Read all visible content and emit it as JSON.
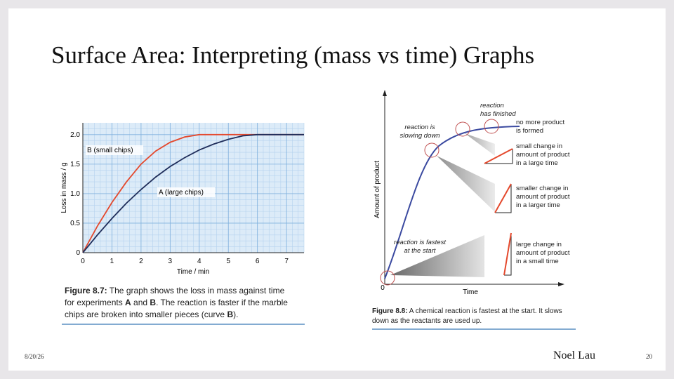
{
  "slide": {
    "title": "Surface Area: Interpreting (mass vs time) Graphs",
    "date": "8/20/26",
    "author": "Noel Lau",
    "page_number": "20",
    "figure_left": {
      "chart_data": {
        "type": "line",
        "x_label": "Time / min",
        "y_label": "Loss in mass / g",
        "xlim": [
          0,
          7.6
        ],
        "ylim": [
          0,
          2.2
        ],
        "xticks": [
          0,
          1,
          2,
          3,
          4,
          5,
          6,
          7
        ],
        "yticks": [
          0,
          0.5,
          {
            "value": 1,
            "label": "1.0"
          },
          1.5,
          {
            "value": 2,
            "label": "2.0"
          }
        ],
        "grid": true,
        "series": [
          {
            "name": "B (small chips)",
            "color": "#e4482c",
            "x": [
              0,
              0.5,
              1,
              1.5,
              2,
              2.5,
              3,
              3.5,
              4,
              5,
              6,
              7,
              7.6
            ],
            "values": [
              0,
              0.45,
              0.85,
              1.2,
              1.5,
              1.72,
              1.87,
              1.96,
              2.0,
              2.0,
              2.0,
              2.0,
              2.0
            ]
          },
          {
            "name": "A (large chips)",
            "color": "#1f2d5a",
            "x": [
              0,
              0.5,
              1,
              1.5,
              2,
              2.5,
              3,
              3.5,
              4,
              4.5,
              5,
              5.5,
              6,
              7,
              7.6
            ],
            "values": [
              0,
              0.3,
              0.58,
              0.84,
              1.07,
              1.28,
              1.46,
              1.61,
              1.74,
              1.84,
              1.92,
              1.98,
              2.0,
              2.0,
              2.0
            ]
          }
        ]
      },
      "caption": [
        [
          {
            "text": "Figure 8.7:",
            "bold": true
          },
          {
            "text": " The graph shows the loss in mass against time",
            "bold": false
          }
        ],
        [
          {
            "text": "for experiments ",
            "bold": false
          },
          {
            "text": "A",
            "bold": true
          },
          {
            "text": " and ",
            "bold": false
          },
          {
            "text": "B",
            "bold": true
          },
          {
            "text": ". The reaction is faster if the marble",
            "bold": false
          }
        ],
        [
          {
            "text": "chips are broken into smaller pieces (curve ",
            "bold": false
          },
          {
            "text": "B",
            "bold": true
          },
          {
            "text": ").",
            "bold": false
          }
        ]
      ]
    },
    "figure_right": {
      "y_label": "Amount of product",
      "x_label": "Time",
      "origin": "0",
      "notes": {
        "finished": [
          "reaction",
          "has finished"
        ],
        "slowing": [
          "reaction is",
          "slowing down"
        ],
        "fastest": [
          "reaction is fastest",
          "at the start"
        ],
        "no_more": [
          "no more product",
          "is formed"
        ],
        "small": [
          "small change in",
          "amount of product",
          "in a large time"
        ],
        "smaller": [
          "smaller change in",
          "amount of product",
          "in a larger time"
        ],
        "large": [
          "large change in",
          "amount of product",
          "in a small time"
        ]
      },
      "caption": [
        [
          {
            "text": "Figure 8.8:",
            "bold": true
          },
          {
            "text": " A chemical reaction is fastest at the start. It slows",
            "bold": false
          }
        ],
        [
          {
            "text": "down as the reactants are used up.",
            "bold": false
          }
        ]
      ]
    }
  }
}
